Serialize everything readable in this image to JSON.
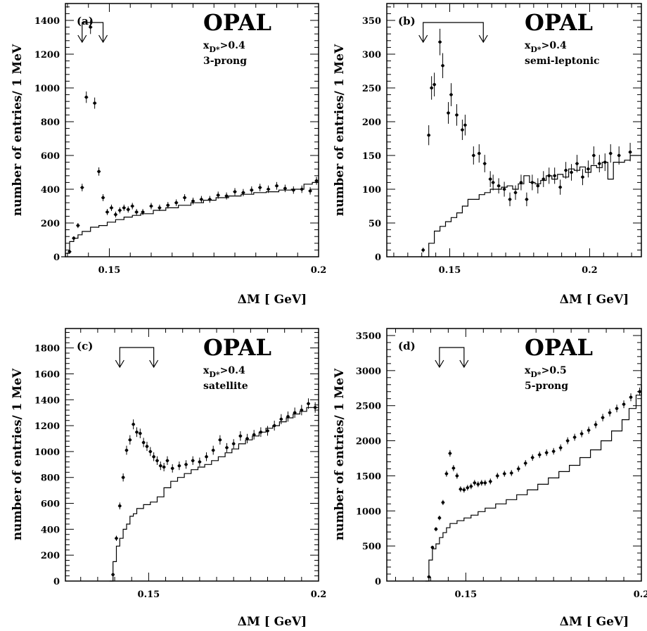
{
  "charts": [
    {
      "label": "(a)",
      "experiment": "OPAL",
      "cut_var": "x",
      "cut_sub": "D*",
      "cut_val": ">0.4",
      "channel": "3-prong",
      "xlabel": "ΔM [ GeV]",
      "ylabel": "number of entries/ 1 MeV",
      "xticks": [
        "0.15",
        "0.2"
      ]
    },
    {
      "label": "(b)",
      "experiment": "OPAL",
      "cut_var": "x",
      "cut_sub": "D*",
      "cut_val": ">0.4",
      "channel": "semi-leptonic",
      "xlabel": "ΔM [ GeV]",
      "ylabel": "number of entries/ 1 MeV",
      "xticks": [
        "0.15",
        "0.2"
      ]
    },
    {
      "label": "(c)",
      "experiment": "OPAL",
      "cut_var": "x",
      "cut_sub": "D*",
      "cut_val": ">0.4",
      "channel": "satellite",
      "xlabel": "ΔM [ GeV]",
      "ylabel": "number of entries/ 1 MeV",
      "xticks": [
        "0.15",
        "0.2"
      ]
    },
    {
      "label": "(d)",
      "experiment": "OPAL",
      "cut_var": "x",
      "cut_sub": "D*",
      "cut_val": ">0.5",
      "channel": "5-prong",
      "xlabel": "ΔM [ GeV]",
      "ylabel": "number of entries/ 1 MeV",
      "xticks": [
        "0.15",
        "0.2"
      ]
    }
  ],
  "chart_data": [
    {
      "type": "scatter",
      "panel": "(a)",
      "xlim": [
        0.1395,
        0.2
      ],
      "ylim": [
        0,
        1500
      ],
      "yticks": [
        0,
        200,
        400,
        600,
        800,
        1000,
        1200,
        1400
      ],
      "signal_window": [
        0.1435,
        0.1485
      ],
      "data_points": [
        [
          0.1405,
          30
        ],
        [
          0.1415,
          110
        ],
        [
          0.1425,
          185
        ],
        [
          0.1435,
          410
        ],
        [
          0.1445,
          945
        ],
        [
          0.1455,
          1360
        ],
        [
          0.1465,
          910
        ],
        [
          0.1475,
          505
        ],
        [
          0.1485,
          350
        ],
        [
          0.1495,
          265
        ],
        [
          0.1505,
          290
        ],
        [
          0.1515,
          250
        ],
        [
          0.1525,
          275
        ],
        [
          0.1535,
          290
        ],
        [
          0.1545,
          280
        ],
        [
          0.1555,
          300
        ],
        [
          0.1565,
          265
        ],
        [
          0.158,
          265
        ],
        [
          0.16,
          300
        ],
        [
          0.162,
          290
        ],
        [
          0.164,
          305
        ],
        [
          0.166,
          320
        ],
        [
          0.168,
          350
        ],
        [
          0.17,
          330
        ],
        [
          0.172,
          340
        ],
        [
          0.174,
          340
        ],
        [
          0.176,
          365
        ],
        [
          0.178,
          360
        ],
        [
          0.18,
          385
        ],
        [
          0.182,
          380
        ],
        [
          0.184,
          395
        ],
        [
          0.186,
          410
        ],
        [
          0.188,
          400
        ],
        [
          0.19,
          420
        ],
        [
          0.192,
          405
        ],
        [
          0.194,
          395
        ],
        [
          0.196,
          400
        ],
        [
          0.198,
          390
        ],
        [
          0.1995,
          450
        ]
      ],
      "background_hist": [
        [
          0.1385,
          0
        ],
        [
          0.1395,
          20
        ],
        [
          0.1405,
          90
        ],
        [
          0.1415,
          110
        ],
        [
          0.1425,
          130
        ],
        [
          0.1435,
          150
        ],
        [
          0.1455,
          175
        ],
        [
          0.1475,
          185
        ],
        [
          0.1495,
          205
        ],
        [
          0.1515,
          220
        ],
        [
          0.1535,
          235
        ],
        [
          0.1555,
          245
        ],
        [
          0.1575,
          255
        ],
        [
          0.1605,
          275
        ],
        [
          0.1635,
          290
        ],
        [
          0.1665,
          305
        ],
        [
          0.1695,
          320
        ],
        [
          0.1725,
          335
        ],
        [
          0.1755,
          350
        ],
        [
          0.1785,
          360
        ],
        [
          0.1815,
          370
        ],
        [
          0.1845,
          380
        ],
        [
          0.1875,
          385
        ],
        [
          0.1905,
          395
        ],
        [
          0.1935,
          400
        ],
        [
          0.1965,
          430
        ],
        [
          0.1985,
          440
        ],
        [
          0.2,
          440
        ]
      ]
    },
    {
      "type": "scatter",
      "panel": "(b)",
      "xlim": [
        0.1275,
        0.2185
      ],
      "ylim": [
        0,
        375
      ],
      "yticks": [
        0,
        50,
        100,
        150,
        200,
        250,
        300,
        350
      ],
      "signal_window": [
        0.1405,
        0.162
      ],
      "data_points": [
        [
          0.1405,
          10
        ],
        [
          0.1425,
          180
        ],
        [
          0.1435,
          250
        ],
        [
          0.1445,
          255
        ],
        [
          0.1465,
          318
        ],
        [
          0.1475,
          283
        ],
        [
          0.1495,
          213
        ],
        [
          0.1505,
          240
        ],
        [
          0.1525,
          210
        ],
        [
          0.1545,
          188
        ],
        [
          0.1555,
          195
        ],
        [
          0.1585,
          150
        ],
        [
          0.1605,
          153
        ],
        [
          0.1625,
          138
        ],
        [
          0.1645,
          115
        ],
        [
          0.1655,
          110
        ],
        [
          0.1675,
          105
        ],
        [
          0.1695,
          100
        ],
        [
          0.1715,
          85
        ],
        [
          0.1735,
          95
        ],
        [
          0.1755,
          110
        ],
        [
          0.1775,
          85
        ],
        [
          0.1795,
          110
        ],
        [
          0.1815,
          105
        ],
        [
          0.1835,
          115
        ],
        [
          0.1855,
          120
        ],
        [
          0.1875,
          120
        ],
        [
          0.1895,
          103
        ],
        [
          0.1915,
          128
        ],
        [
          0.1935,
          125
        ],
        [
          0.1955,
          138
        ],
        [
          0.1975,
          118
        ],
        [
          0.1995,
          130
        ],
        [
          0.2015,
          150
        ],
        [
          0.2035,
          138
        ],
        [
          0.2055,
          140
        ],
        [
          0.2075,
          153
        ],
        [
          0.2105,
          150
        ],
        [
          0.2145,
          155
        ]
      ],
      "background_hist": [
        [
          0.1395,
          0
        ],
        [
          0.1425,
          20
        ],
        [
          0.1445,
          38
        ],
        [
          0.1465,
          45
        ],
        [
          0.1485,
          52
        ],
        [
          0.1505,
          58
        ],
        [
          0.1525,
          65
        ],
        [
          0.1545,
          75
        ],
        [
          0.1565,
          85
        ],
        [
          0.1585,
          85
        ],
        [
          0.1605,
          92
        ],
        [
          0.1625,
          95
        ],
        [
          0.1645,
          100
        ],
        [
          0.1665,
          100
        ],
        [
          0.1685,
          103
        ],
        [
          0.1705,
          105
        ],
        [
          0.1725,
          100
        ],
        [
          0.1745,
          108
        ],
        [
          0.1765,
          120
        ],
        [
          0.1785,
          110
        ],
        [
          0.1805,
          108
        ],
        [
          0.1825,
          113
        ],
        [
          0.1845,
          120
        ],
        [
          0.1865,
          115
        ],
        [
          0.1885,
          122
        ],
        [
          0.1905,
          118
        ],
        [
          0.1925,
          130
        ],
        [
          0.1945,
          128
        ],
        [
          0.1965,
          133
        ],
        [
          0.1985,
          125
        ],
        [
          0.2005,
          135
        ],
        [
          0.2025,
          132
        ],
        [
          0.2045,
          140
        ],
        [
          0.2065,
          115
        ],
        [
          0.2085,
          140
        ],
        [
          0.2105,
          140
        ],
        [
          0.2125,
          143
        ],
        [
          0.2145,
          150
        ],
        [
          0.2185,
          150
        ]
      ]
    },
    {
      "type": "scatter",
      "panel": "(c)",
      "xlim": [
        0.1255,
        0.2
      ],
      "ylim": [
        0,
        1950
      ],
      "yticks": [
        0,
        200,
        400,
        600,
        800,
        1000,
        1200,
        1400,
        1600,
        1800
      ],
      "signal_window": [
        0.1415,
        0.1515
      ],
      "data_points": [
        [
          0.1395,
          50
        ],
        [
          0.1405,
          330
        ],
        [
          0.1415,
          580
        ],
        [
          0.1425,
          800
        ],
        [
          0.1435,
          1010
        ],
        [
          0.1445,
          1090
        ],
        [
          0.1455,
          1210
        ],
        [
          0.1465,
          1150
        ],
        [
          0.1475,
          1140
        ],
        [
          0.1485,
          1070
        ],
        [
          0.1495,
          1040
        ],
        [
          0.1505,
          1000
        ],
        [
          0.1515,
          960
        ],
        [
          0.1525,
          930
        ],
        [
          0.1535,
          890
        ],
        [
          0.1545,
          880
        ],
        [
          0.1555,
          930
        ],
        [
          0.157,
          870
        ],
        [
          0.159,
          890
        ],
        [
          0.161,
          900
        ],
        [
          0.163,
          930
        ],
        [
          0.165,
          920
        ],
        [
          0.167,
          960
        ],
        [
          0.169,
          1010
        ],
        [
          0.171,
          1090
        ],
        [
          0.173,
          1030
        ],
        [
          0.175,
          1060
        ],
        [
          0.177,
          1120
        ],
        [
          0.179,
          1100
        ],
        [
          0.181,
          1130
        ],
        [
          0.183,
          1150
        ],
        [
          0.185,
          1160
        ],
        [
          0.187,
          1200
        ],
        [
          0.189,
          1250
        ],
        [
          0.191,
          1270
        ],
        [
          0.193,
          1300
        ],
        [
          0.195,
          1320
        ],
        [
          0.197,
          1370
        ],
        [
          0.199,
          1340
        ]
      ],
      "background_hist": [
        [
          0.1385,
          0
        ],
        [
          0.1395,
          150
        ],
        [
          0.1405,
          270
        ],
        [
          0.1415,
          330
        ],
        [
          0.1425,
          400
        ],
        [
          0.1435,
          440
        ],
        [
          0.1445,
          500
        ],
        [
          0.1455,
          520
        ],
        [
          0.1465,
          560
        ],
        [
          0.1485,
          590
        ],
        [
          0.1505,
          610
        ],
        [
          0.1525,
          650
        ],
        [
          0.1545,
          720
        ],
        [
          0.1565,
          770
        ],
        [
          0.1585,
          800
        ],
        [
          0.1605,
          830
        ],
        [
          0.1625,
          860
        ],
        [
          0.1645,
          880
        ],
        [
          0.1665,
          900
        ],
        [
          0.1685,
          930
        ],
        [
          0.1705,
          960
        ],
        [
          0.1725,
          990
        ],
        [
          0.1745,
          1020
        ],
        [
          0.1765,
          1060
        ],
        [
          0.1785,
          1090
        ],
        [
          0.1805,
          1120
        ],
        [
          0.1825,
          1150
        ],
        [
          0.1845,
          1180
        ],
        [
          0.1865,
          1200
        ],
        [
          0.1885,
          1230
        ],
        [
          0.1905,
          1260
        ],
        [
          0.1925,
          1290
        ],
        [
          0.1945,
          1310
        ],
        [
          0.1965,
          1340
        ],
        [
          0.1985,
          1340
        ],
        [
          0.2,
          1340
        ]
      ]
    },
    {
      "type": "scatter",
      "panel": "(d)",
      "xlim": [
        0.1275,
        0.2
      ],
      "ylim": [
        0,
        3600
      ],
      "yticks": [
        0,
        500,
        1000,
        1500,
        2000,
        2500,
        3000,
        3500
      ],
      "signal_window": [
        0.1425,
        0.1495
      ],
      "data_points": [
        [
          0.1395,
          60
        ],
        [
          0.1405,
          480
        ],
        [
          0.1415,
          740
        ],
        [
          0.1425,
          900
        ],
        [
          0.1435,
          1120
        ],
        [
          0.1445,
          1530
        ],
        [
          0.1455,
          1820
        ],
        [
          0.1465,
          1610
        ],
        [
          0.1475,
          1500
        ],
        [
          0.1485,
          1310
        ],
        [
          0.1495,
          1300
        ],
        [
          0.1505,
          1330
        ],
        [
          0.1515,
          1350
        ],
        [
          0.1525,
          1400
        ],
        [
          0.1535,
          1380
        ],
        [
          0.1545,
          1400
        ],
        [
          0.1555,
          1400
        ],
        [
          0.157,
          1420
        ],
        [
          0.159,
          1500
        ],
        [
          0.161,
          1530
        ],
        [
          0.163,
          1540
        ],
        [
          0.165,
          1600
        ],
        [
          0.167,
          1680
        ],
        [
          0.169,
          1760
        ],
        [
          0.171,
          1800
        ],
        [
          0.173,
          1830
        ],
        [
          0.175,
          1850
        ],
        [
          0.177,
          1900
        ],
        [
          0.179,
          2000
        ],
        [
          0.181,
          2050
        ],
        [
          0.183,
          2100
        ],
        [
          0.185,
          2150
        ],
        [
          0.187,
          2230
        ],
        [
          0.189,
          2330
        ],
        [
          0.191,
          2400
        ],
        [
          0.193,
          2460
        ],
        [
          0.195,
          2520
        ],
        [
          0.197,
          2620
        ],
        [
          0.1995,
          2700
        ]
      ],
      "background_hist": [
        [
          0.1385,
          0
        ],
        [
          0.1395,
          300
        ],
        [
          0.1405,
          460
        ],
        [
          0.1415,
          530
        ],
        [
          0.1425,
          620
        ],
        [
          0.1435,
          690
        ],
        [
          0.1445,
          760
        ],
        [
          0.1455,
          820
        ],
        [
          0.1475,
          860
        ],
        [
          0.1495,
          900
        ],
        [
          0.1515,
          940
        ],
        [
          0.1535,
          990
        ],
        [
          0.1555,
          1040
        ],
        [
          0.1585,
          1100
        ],
        [
          0.1615,
          1160
        ],
        [
          0.1645,
          1230
        ],
        [
          0.1675,
          1300
        ],
        [
          0.1705,
          1380
        ],
        [
          0.1735,
          1470
        ],
        [
          0.1765,
          1560
        ],
        [
          0.1795,
          1650
        ],
        [
          0.1825,
          1760
        ],
        [
          0.1855,
          1870
        ],
        [
          0.1885,
          2000
        ],
        [
          0.1915,
          2140
        ],
        [
          0.1945,
          2300
        ],
        [
          0.1965,
          2460
        ],
        [
          0.1985,
          2650
        ],
        [
          0.2,
          2800
        ]
      ]
    }
  ]
}
